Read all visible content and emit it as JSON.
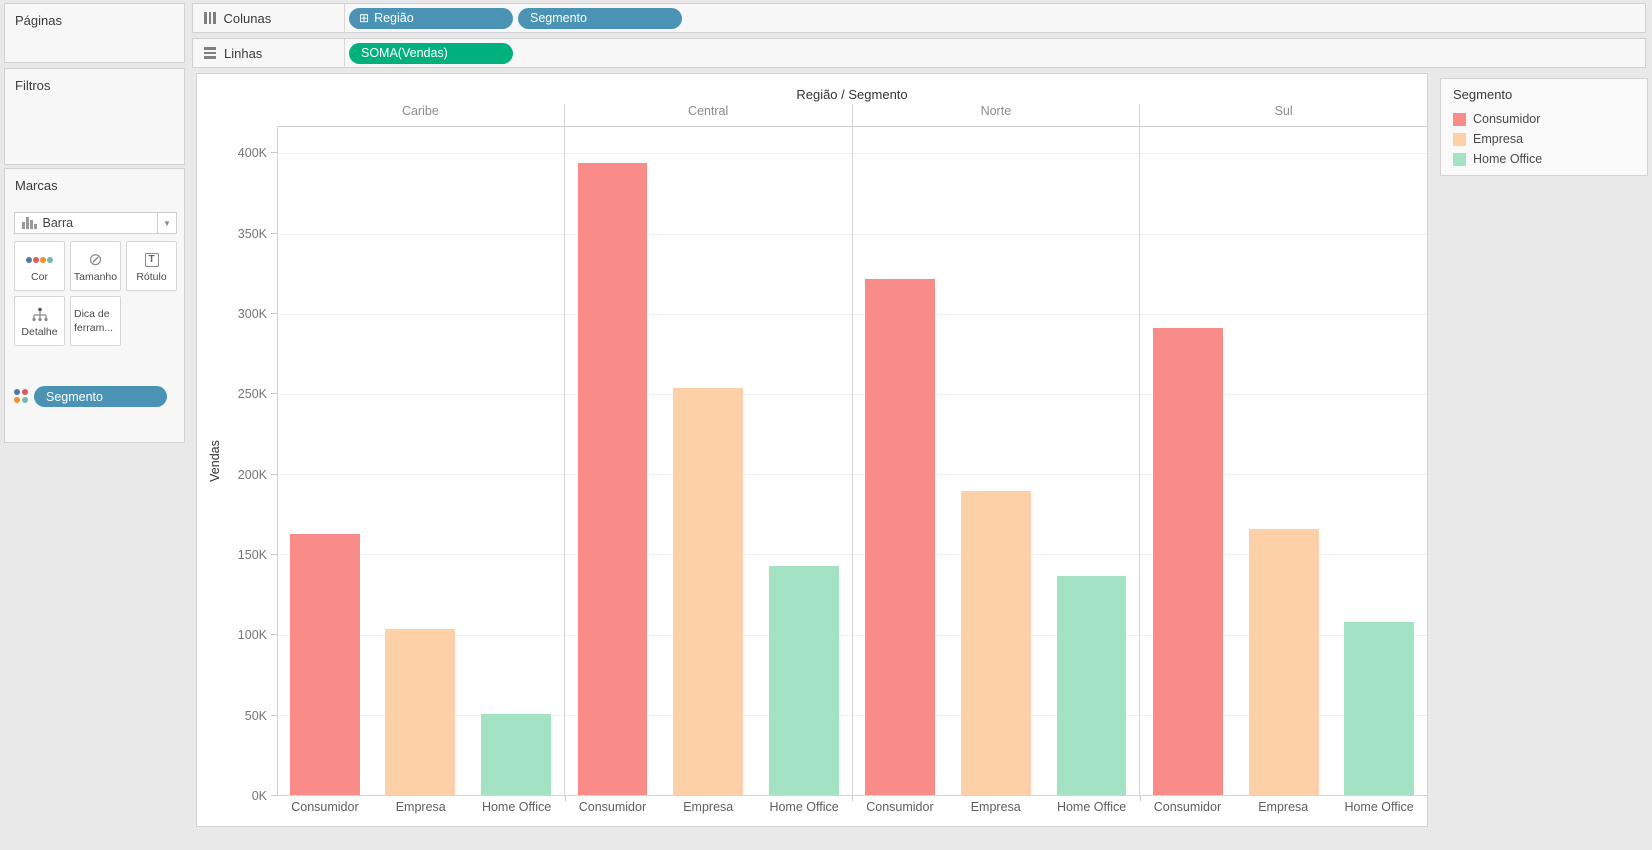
{
  "shelves": {
    "columns": {
      "label": "Colunas",
      "pills": [
        {
          "label": "Região",
          "has_plus": true
        },
        {
          "label": "Segmento",
          "has_plus": false
        }
      ]
    },
    "rows": {
      "label": "Linhas",
      "pills": [
        {
          "label": "SOMA(Vendas)"
        }
      ]
    }
  },
  "sidebar": {
    "pages_title": "Páginas",
    "filters_title": "Filtros",
    "marks": {
      "title": "Marcas",
      "mark_type": "Barra",
      "buttons": [
        {
          "label": "Cor"
        },
        {
          "label": "Tamanho"
        },
        {
          "label": "Rótulo"
        },
        {
          "label": "Detalhe"
        },
        {
          "label": "Dica de ferram..."
        }
      ],
      "encoding_pill": "Segmento"
    }
  },
  "legend": {
    "title": "Segmento",
    "items": [
      {
        "label": "Consumidor",
        "color": "#f98b88"
      },
      {
        "label": "Empresa",
        "color": "#fdd0a7"
      },
      {
        "label": "Home Office",
        "color": "#a4e2c4"
      }
    ]
  },
  "chart_data": {
    "type": "bar",
    "title": "Região / Segmento",
    "ylabel": "Vendas",
    "categories": [
      "Caribe",
      "Central",
      "Norte",
      "Sul"
    ],
    "sub_categories": [
      "Consumidor",
      "Empresa",
      "Home Office"
    ],
    "series": [
      {
        "name": "Consumidor",
        "color": "#f98b88",
        "values": [
          163000,
          394000,
          322000,
          291000
        ]
      },
      {
        "name": "Empresa",
        "color": "#fdd0a7",
        "values": [
          104000,
          254000,
          190000,
          166000
        ]
      },
      {
        "name": "Home Office",
        "color": "#a4e2c4",
        "values": [
          51000,
          143000,
          137000,
          108000
        ]
      }
    ],
    "ylim": [
      0,
      417000
    ],
    "ytick_step": 50000,
    "ytick_max": 400000,
    "ytick_labels": [
      "0K",
      "50K",
      "100K",
      "150K",
      "200K",
      "250K",
      "300K",
      "350K",
      "400K"
    ],
    "grid": true,
    "legend_position": "right"
  }
}
